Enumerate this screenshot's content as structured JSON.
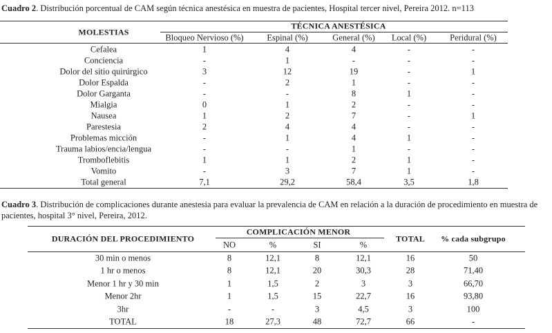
{
  "table1": {
    "caption_label": "Cuadro 2",
    "caption": ". Distribución  porcentual  de CAM según técnica anestésica  en muestra de pacientes, Hospital tercer nivel, Pereira 2012. n=113",
    "row_header": "MOLESTIAS",
    "group_header": "TÉCNICA ANESTÉSICA",
    "subheaders": [
      "Bloqueo Nervioso (%)",
      "Espinal (%)",
      "General (%)",
      "Local (%)",
      "Peridural (%)"
    ],
    "rows": [
      [
        "Cefalea",
        "1",
        "4",
        "4",
        "-",
        "-"
      ],
      [
        "Conciencia",
        "-",
        "1",
        "-",
        "-",
        "-"
      ],
      [
        "Dolor del sitio quirúrgico",
        "3",
        "12",
        "19",
        "-",
        "1"
      ],
      [
        "Dolor Espalda",
        "-",
        "2",
        "1",
        "-",
        "-"
      ],
      [
        "Dolor Garganta",
        "-",
        "-",
        "8",
        "1",
        "-"
      ],
      [
        "Mialgia",
        "0",
        "1",
        "2",
        "-",
        "-"
      ],
      [
        "Nausea",
        "1",
        "2",
        "7",
        "-",
        "1"
      ],
      [
        "Parestesia",
        "2",
        "4",
        "4",
        "-",
        "-"
      ],
      [
        "Problemas micción",
        "-",
        "1",
        "4",
        "1",
        "-"
      ],
      [
        "Trauma labios/encia/lengua",
        "-",
        "-",
        "1",
        "-",
        "-"
      ],
      [
        "Tromboflebitis",
        "1",
        "1",
        "2",
        "1",
        "-"
      ],
      [
        "Vomito",
        "-",
        "3",
        "7",
        "1",
        "-"
      ],
      [
        "Total general",
        "7,1",
        "29,2",
        "58,4",
        "3,5",
        "1,8"
      ]
    ]
  },
  "table2": {
    "caption_label": "Cuadro 3",
    "caption": ". Distribución de complicaciones durante anestesia para evaluar la prevalencia de CAM en relación a la duración de procedimiento en muestra de pacientes, hospital 3° nivel,  Pereira, 2012.",
    "row_header": "DURACIÓN DEL PROCEDIMIENTO",
    "group_header": "COMPLICACIÓN MENOR",
    "total_header": "TOTAL",
    "subgroup_header": "% cada subgrupo",
    "subheaders": [
      "NO",
      "%",
      "SI",
      "%"
    ],
    "rows": [
      [
        "30 min o menos",
        "8",
        "12,1",
        "8",
        "12,1",
        "16",
        "50"
      ],
      [
        "1 hr o menos",
        "8",
        "12,1",
        "20",
        "30,3",
        "28",
        "71,40"
      ],
      [
        "Menor 1 hr y 30 min",
        "1",
        "1,5",
        "2",
        "3",
        "3",
        "66,70"
      ],
      [
        "Menor 2hr",
        "1",
        "1,5",
        "15",
        "22,7",
        "16",
        "93,80"
      ],
      [
        "3hr",
        "-",
        "-",
        "3",
        "4,5",
        "3",
        "100"
      ],
      [
        "TOTAL",
        "18",
        "27,3",
        "48",
        "72,7",
        "66",
        "-"
      ]
    ]
  }
}
